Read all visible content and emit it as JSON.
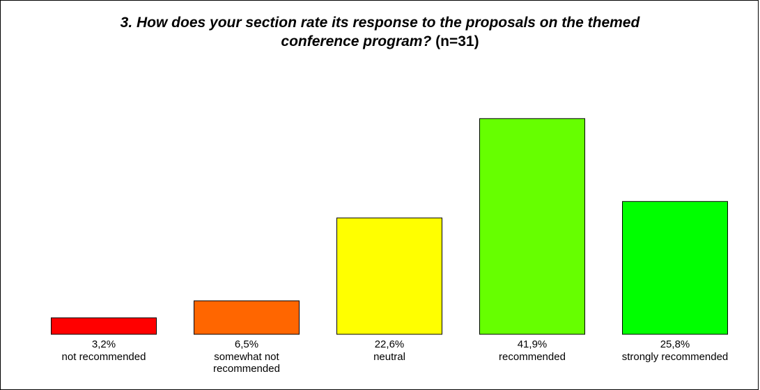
{
  "chart_data": {
    "type": "bar",
    "title": "3. How does your section rate its response to the proposals on the themed conference program?",
    "title_suffix": "(n=31)",
    "title_line1": "3. How does your section rate its response to the proposals on the themed",
    "title_line2": "conference program?",
    "categories": [
      "not recommended",
      "somewhat not recommended",
      "neutral",
      "recommended",
      "strongly recommended"
    ],
    "category_lines": [
      [
        "not recommended"
      ],
      [
        "somewhat not",
        "recommended"
      ],
      [
        "neutral"
      ],
      [
        "recommended"
      ],
      [
        "strongly recommended"
      ]
    ],
    "values": [
      3.2,
      6.5,
      22.6,
      41.9,
      25.8
    ],
    "value_labels": [
      "3,2%",
      "6,5%",
      "22,6%",
      "41,9%",
      "25,8%"
    ],
    "colors": [
      "#ff0000",
      "#ff6600",
      "#ffff00",
      "#66ff00",
      "#00ff00"
    ],
    "ylim": [
      0,
      46
    ],
    "grid": false,
    "legend": "none"
  }
}
